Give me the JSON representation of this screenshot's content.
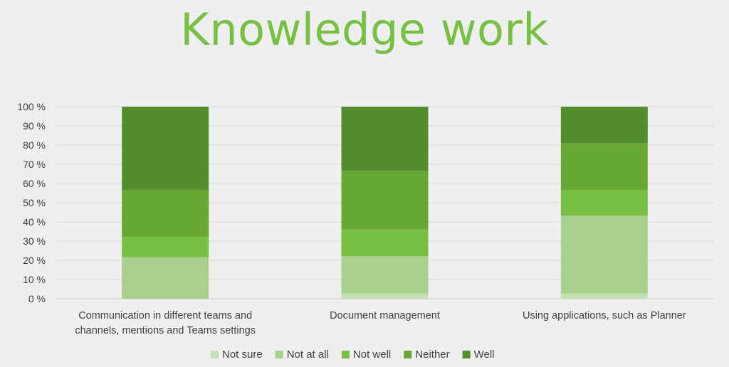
{
  "chart_data": {
    "type": "bar",
    "stacked": "percent",
    "title": "Knowledge work",
    "categories": [
      [
        "Communication in different teams and",
        "channels, mentions and Teams settings"
      ],
      [
        "Document management"
      ],
      [
        "Using applications, such as Planner"
      ]
    ],
    "series": [
      {
        "name": "Not sure",
        "color": "#c5e0b3",
        "values": [
          0,
          2.7,
          2.7
        ]
      },
      {
        "name": "Not at all",
        "color": "#a9d18e",
        "values": [
          21.6,
          19.4,
          40.5
        ]
      },
      {
        "name": "Not well",
        "color": "#77c043",
        "values": [
          10.8,
          13.9,
          13.5
        ]
      },
      {
        "name": "Neither",
        "color": "#66a832",
        "values": [
          24.3,
          30.6,
          24.3
        ]
      },
      {
        "name": "Well",
        "color": "#548d2c",
        "values": [
          43.3,
          33.4,
          19.0
        ]
      }
    ],
    "ylim": [
      0,
      100
    ],
    "yticks": [
      "0 %",
      "10 %",
      "20 %",
      "30 %",
      "40 %",
      "50 %",
      "60 %",
      "70 %",
      "80 %",
      "90 %",
      "100 %"
    ],
    "grid": true,
    "legend": "bottom"
  }
}
